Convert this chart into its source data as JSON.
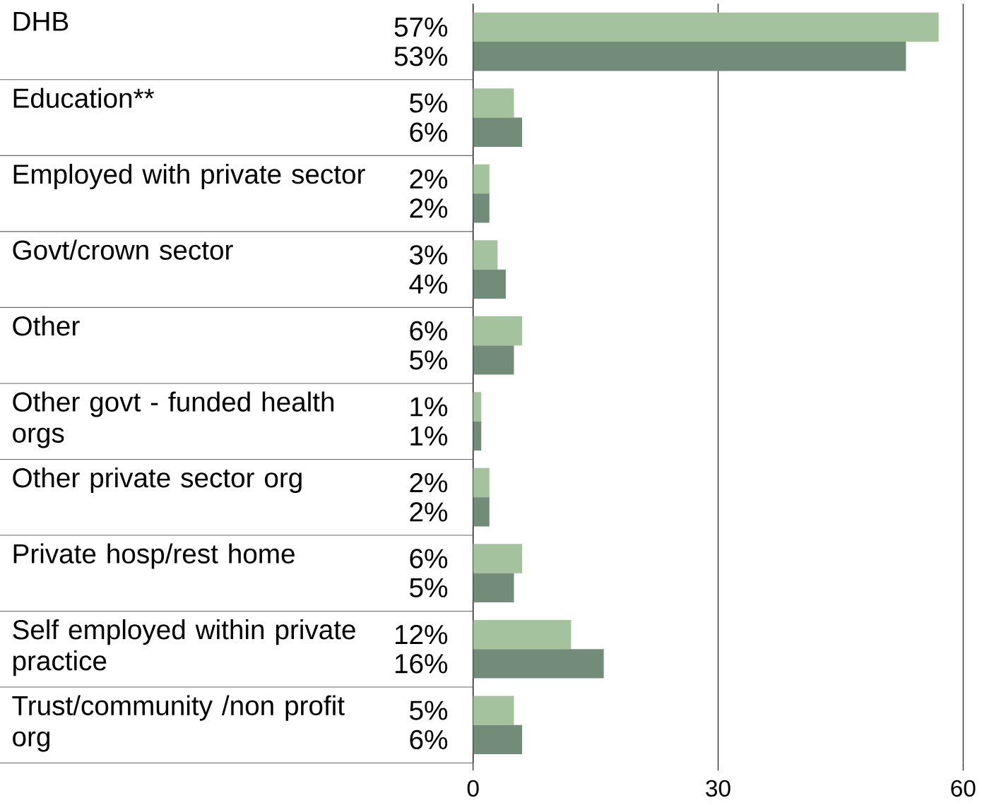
{
  "chart_data": {
    "type": "bar",
    "orientation": "horizontal",
    "categories": [
      "DHB",
      "Education**",
      "Employed with private sector",
      "Govt/crown sector",
      "Other",
      "Other govt - funded health orgs",
      "Other private sector org",
      "Private hosp/rest home",
      "Self employed within private practice",
      "Trust/community /non profit org"
    ],
    "series": [
      {
        "color": "#a3c29d",
        "values": [
          57,
          5,
          2,
          3,
          6,
          1,
          2,
          6,
          12,
          5
        ],
        "value_labels": [
          "57%",
          "5%",
          "2%",
          "3%",
          "6%",
          "1%",
          "2%",
          "6%",
          "12%",
          "5%"
        ]
      },
      {
        "color": "#738c79",
        "values": [
          53,
          6,
          2,
          4,
          5,
          1,
          2,
          5,
          16,
          6
        ],
        "value_labels": [
          "53%",
          "6%",
          "2%",
          "4%",
          "5%",
          "1%",
          "2%",
          "5%",
          "16%",
          "6%"
        ]
      }
    ],
    "xlim": [
      0,
      60
    ],
    "xticks": [
      0,
      30,
      60
    ],
    "grid": "x"
  }
}
